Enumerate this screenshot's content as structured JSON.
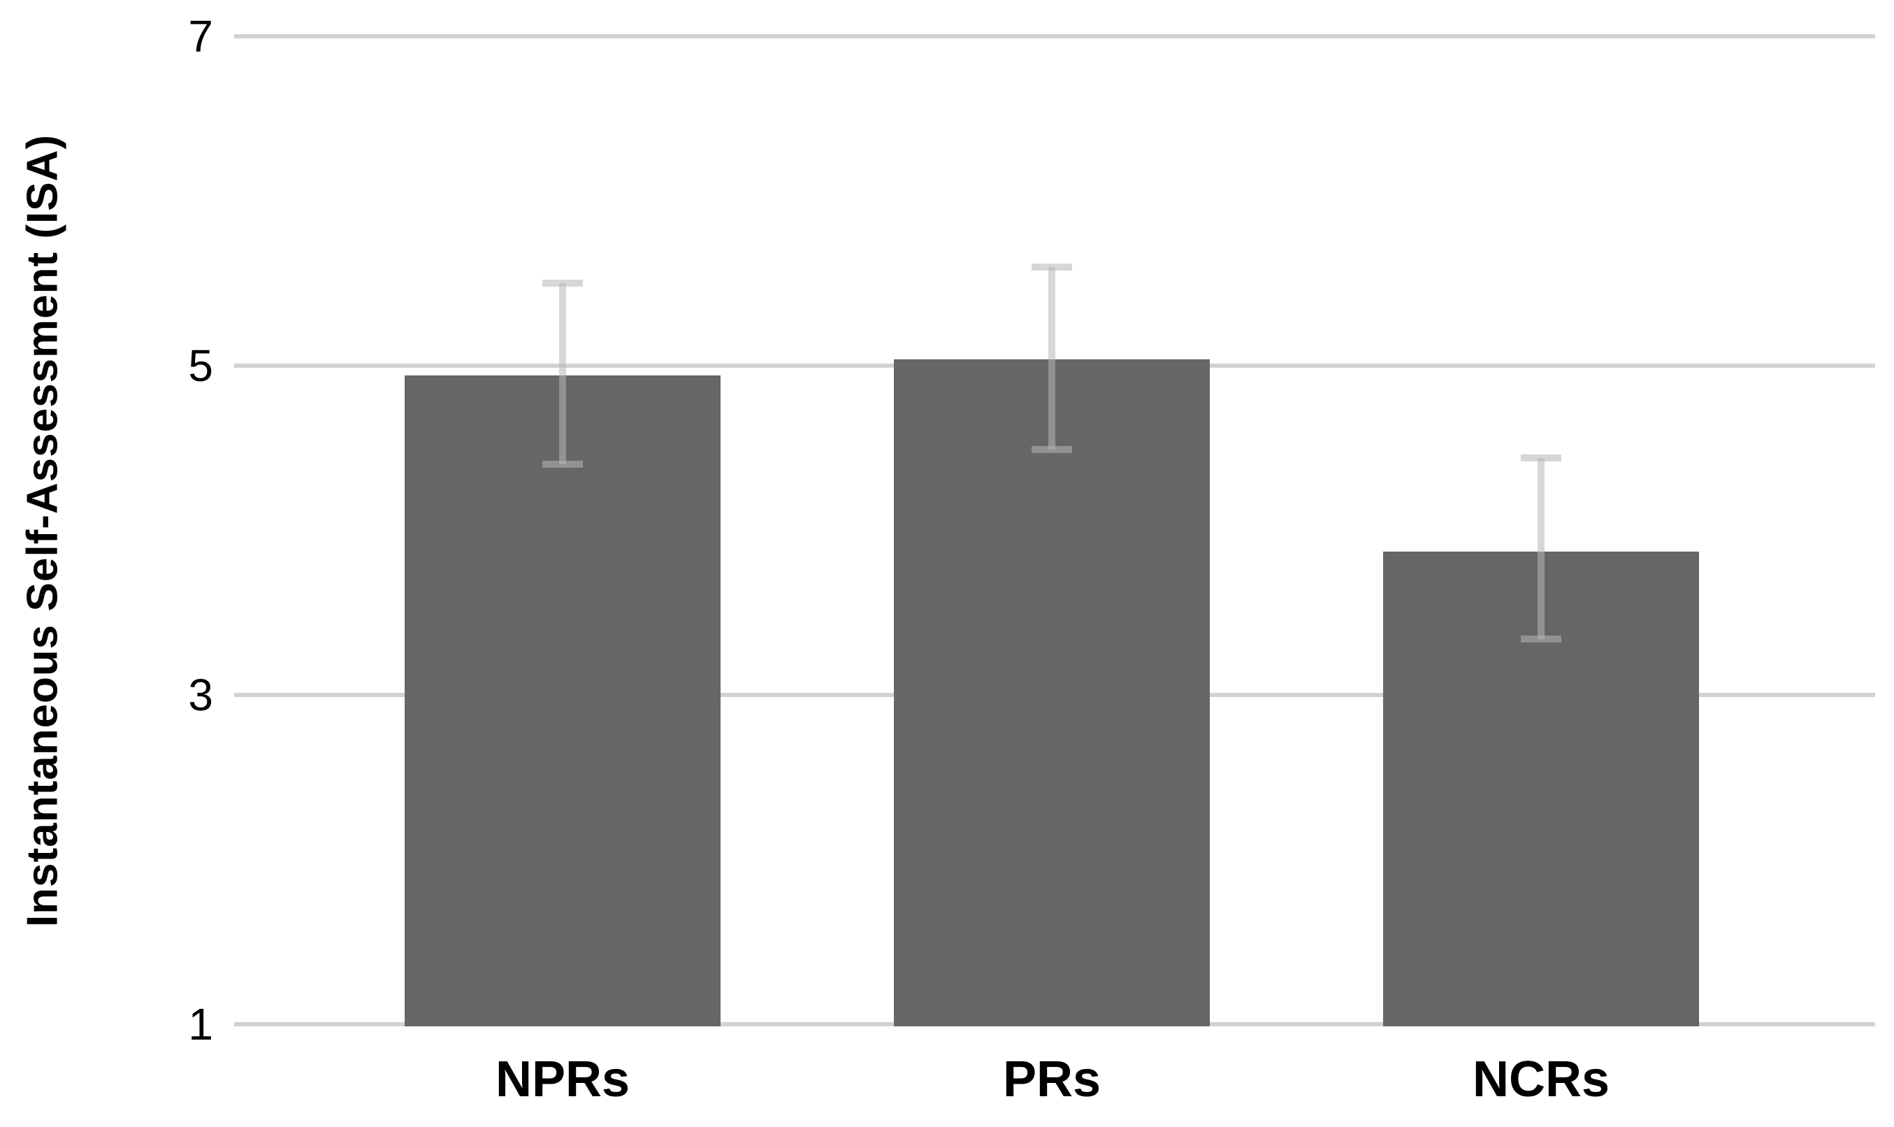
{
  "colors": {
    "bar": "#666666",
    "gridline": "#d2d2d2",
    "error_bar": "#b7b7b7",
    "text": "#000000",
    "background": "#ffffff"
  },
  "chart_data": {
    "type": "bar",
    "title": "",
    "xlabel": "",
    "ylabel": "Instantaneous Self-Assessment (ISA)",
    "categories": [
      "NPRs",
      "PRs",
      "NCRs"
    ],
    "values": [
      4.94,
      5.04,
      3.87
    ],
    "error_upper": [
      5.5,
      5.6,
      4.44
    ],
    "error_lower": [
      4.4,
      4.49,
      3.34
    ],
    "ylim": [
      1,
      7
    ],
    "yticks": [
      1,
      3,
      5,
      7
    ],
    "grid": true,
    "legend_position": "none",
    "bar_color": "#666666"
  }
}
